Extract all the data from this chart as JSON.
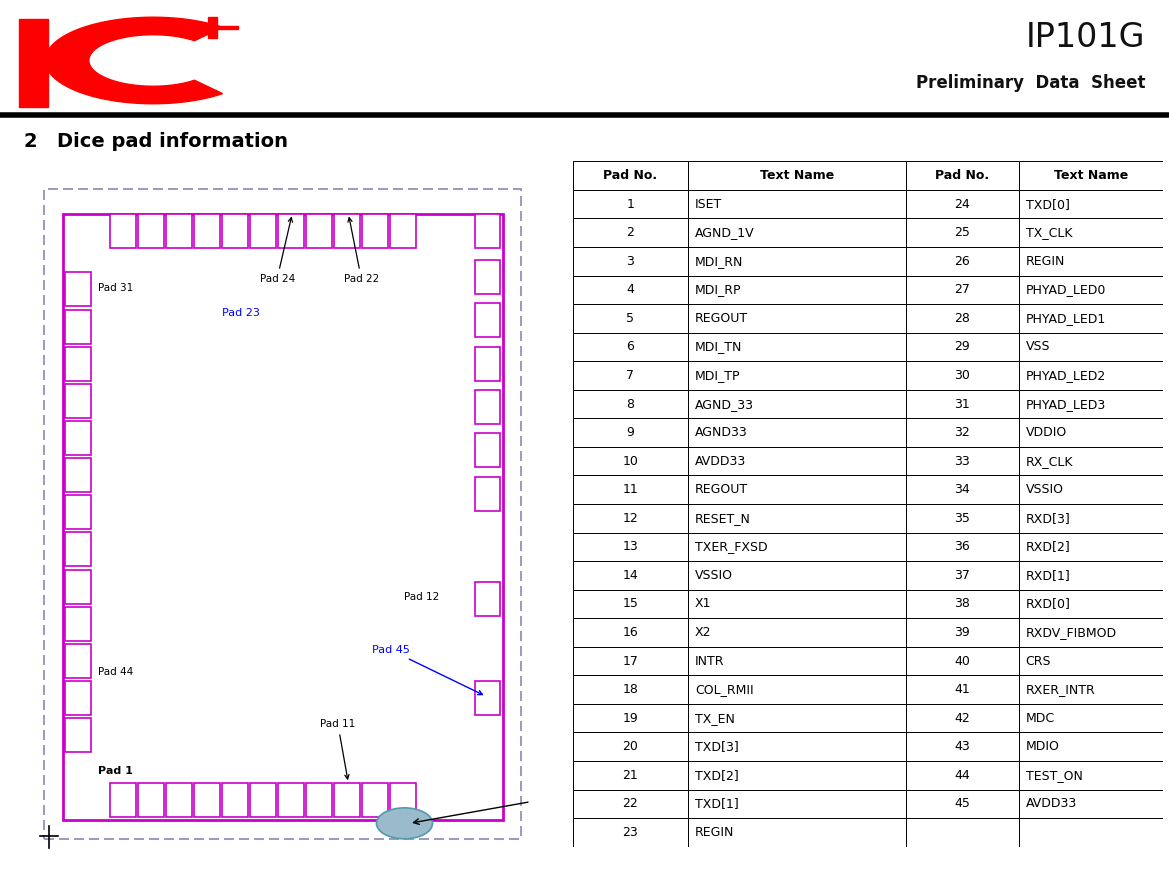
{
  "title": "IP101G",
  "subtitle": "Preliminary  Data  Sheet",
  "section_num": "2",
  "section_title": "Dice pad information",
  "bg_color": "#ffffff",
  "pad_color": "#cc00cc",
  "dash_color": "#8888bb",
  "table_header": [
    "Pad No.",
    "Text Name",
    "Pad No.",
    "Text Name"
  ],
  "table_data": [
    [
      1,
      "ISET",
      24,
      "TXD[0]"
    ],
    [
      2,
      "AGND_1V",
      25,
      "TX_CLK"
    ],
    [
      3,
      "MDI_RN",
      26,
      "REGIN"
    ],
    [
      4,
      "MDI_RP",
      27,
      "PHYAD_LED0"
    ],
    [
      5,
      "REGOUT",
      28,
      "PHYAD_LED1"
    ],
    [
      6,
      "MDI_TN",
      29,
      "VSS"
    ],
    [
      7,
      "MDI_TP",
      30,
      "PHYAD_LED2"
    ],
    [
      8,
      "AGND_33",
      31,
      "PHYAD_LED3"
    ],
    [
      9,
      "AGND33",
      32,
      "VDDIO"
    ],
    [
      10,
      "AVDD33",
      33,
      "RX_CLK"
    ],
    [
      11,
      "REGOUT",
      34,
      "VSSIO"
    ],
    [
      12,
      "RESET_N",
      35,
      "RXD[3]"
    ],
    [
      13,
      "TXER_FXSD",
      36,
      "RXD[2]"
    ],
    [
      14,
      "VSSIO",
      37,
      "RXD[1]"
    ],
    [
      15,
      "X1",
      38,
      "RXD[0]"
    ],
    [
      16,
      "X2",
      39,
      "RXDV_FIBMOD"
    ],
    [
      17,
      "INTR",
      40,
      "CRS"
    ],
    [
      18,
      "COL_RMII",
      41,
      "RXER_INTR"
    ],
    [
      19,
      "TX_EN",
      42,
      "MDC"
    ],
    [
      20,
      "TXD[3]",
      43,
      "MDIO"
    ],
    [
      21,
      "TXD[2]",
      44,
      "TEST_ON"
    ],
    [
      22,
      "TXD[1]",
      45,
      "AVDD33"
    ],
    [
      23,
      "REGIN",
      null,
      null
    ]
  ]
}
